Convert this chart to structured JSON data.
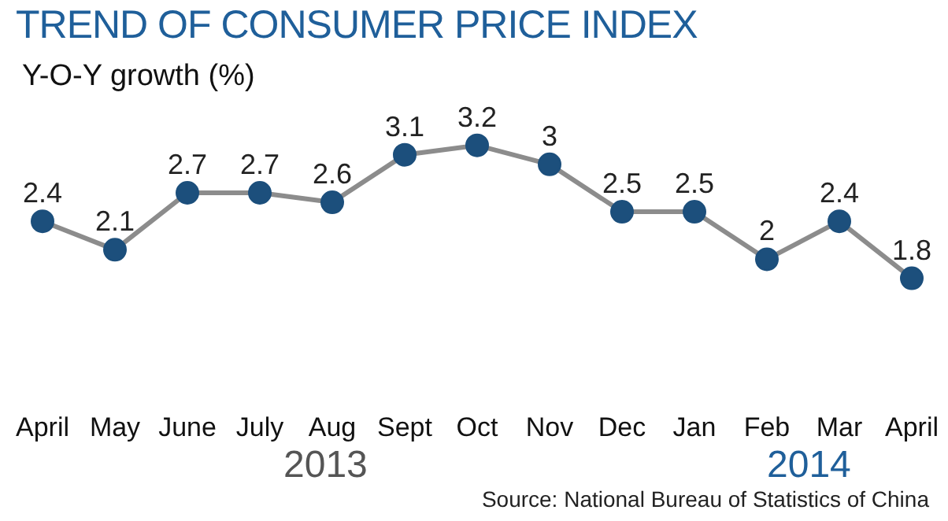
{
  "chart_data": {
    "type": "line",
    "title": "TREND OF CONSUMER PRICE INDEX",
    "ylabel": "Y-O-Y growth (%)",
    "categories": [
      "April",
      "May",
      "June",
      "July",
      "Aug",
      "Sept",
      "Oct",
      "Nov",
      "Dec",
      "Jan",
      "Feb",
      "Mar",
      "April"
    ],
    "series": [
      {
        "color": "#1c4f7c",
        "values": [
          2.4,
          2.1,
          2.7,
          2.7,
          2.6,
          3.1,
          3.2,
          3,
          2.5,
          2.5,
          2,
          2.4,
          1.8
        ]
      }
    ],
    "data_labels": true,
    "marker": "circle",
    "annotations": [
      "2013",
      "2014",
      "Source: National Bureau of Statistics of China"
    ]
  }
}
